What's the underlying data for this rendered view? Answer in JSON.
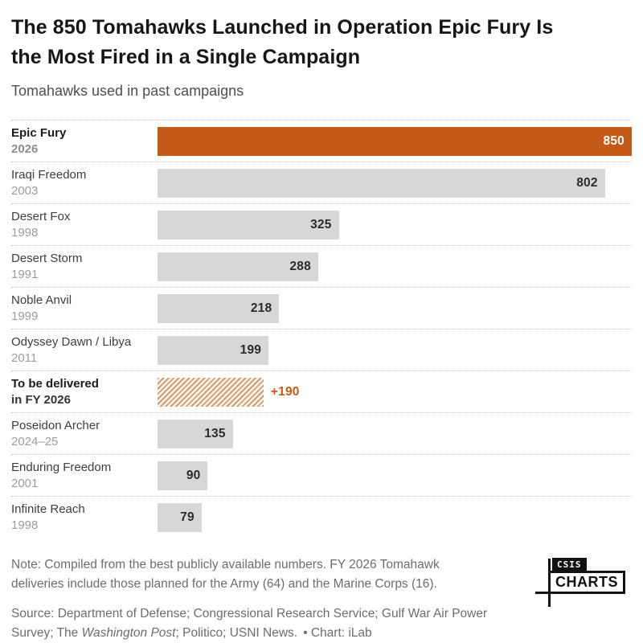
{
  "header": {
    "title_line1": "The 850 Tomahawks Launched in Operation Epic Fury Is",
    "title_line2": "the Most Fired in a Single Campaign",
    "subtitle": "Tomahawks used in past campaigns"
  },
  "chart_data": {
    "type": "bar",
    "orientation": "horizontal",
    "title": "Tomahawks used in past campaigns",
    "xlim": [
      0,
      850
    ],
    "max_value": 850,
    "grid": "dotted-row-separators",
    "highlight_color": "#C35A17",
    "default_bar_color": "#D7D7D7",
    "rows": [
      {
        "campaign": "Epic Fury",
        "year": "2026",
        "value": 850,
        "value_label": "850",
        "bar_style": "highlight",
        "label_bold": true,
        "value_position": "inside",
        "year_style": "year"
      },
      {
        "campaign": "Iraqi Freedom",
        "year": "2003",
        "value": 802,
        "value_label": "802",
        "bar_style": "default",
        "label_bold": false,
        "value_position": "inside",
        "year_style": "year"
      },
      {
        "campaign": "Desert Fox",
        "year": "1998",
        "value": 325,
        "value_label": "325",
        "bar_style": "default",
        "label_bold": false,
        "value_position": "inside",
        "year_style": "year"
      },
      {
        "campaign": "Desert Storm",
        "year": "1991",
        "value": 288,
        "value_label": "288",
        "bar_style": "default",
        "label_bold": false,
        "value_position": "inside",
        "year_style": "year"
      },
      {
        "campaign": "Noble Anvil",
        "year": "1999",
        "value": 218,
        "value_label": "218",
        "bar_style": "default",
        "label_bold": false,
        "value_position": "inside",
        "year_style": "year"
      },
      {
        "campaign": "Odyssey Dawn / Libya",
        "year": "2011",
        "value": 199,
        "value_label": "199",
        "bar_style": "default",
        "label_bold": false,
        "value_position": "inside",
        "year_style": "year"
      },
      {
        "campaign": "To be delivered",
        "year": "in FY 2026",
        "value": 190,
        "value_label": "+190",
        "bar_style": "hatched",
        "label_bold": true,
        "value_position": "outside",
        "year_style": "bold-dark"
      },
      {
        "campaign": "Poseidon Archer",
        "year": "2024–25",
        "value": 135,
        "value_label": "135",
        "bar_style": "default",
        "label_bold": false,
        "value_position": "inside",
        "year_style": "year"
      },
      {
        "campaign": "Enduring Freedom",
        "year": "2001",
        "value": 90,
        "value_label": "90",
        "bar_style": "default",
        "label_bold": false,
        "value_position": "inside",
        "year_style": "year"
      },
      {
        "campaign": "Infinite Reach",
        "year": "1998",
        "value": 79,
        "value_label": "79",
        "bar_style": "default",
        "label_bold": false,
        "value_position": "inside",
        "year_style": "year"
      }
    ]
  },
  "footer": {
    "note_line1": "Note: Compiled from the best publicly available numbers. FY 2026 Tomahawk",
    "note_line2": "deliveries include those planned for the Army (64) and the Marine Corps (16).",
    "source_line1": "Source: Department of Defense; Congressional Research Service; Gulf War Air Power",
    "source_line2_pre": "Survey; The ",
    "source_italic": "Washington Post",
    "source_line2_post": "; Politico; USNI News.",
    "credit": "• Chart: iLab",
    "logo_top": "CSIS",
    "logo_bottom": "CHARTS"
  }
}
